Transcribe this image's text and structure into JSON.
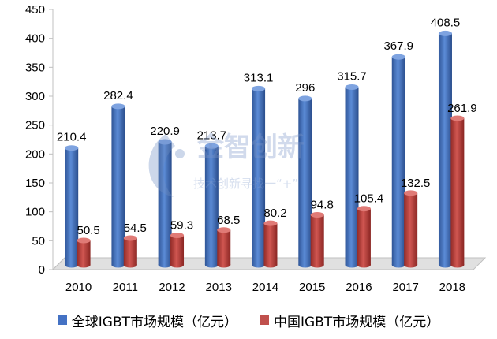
{
  "chart_data": {
    "type": "bar",
    "categories": [
      "2010",
      "2011",
      "2012",
      "2013",
      "2014",
      "2015",
      "2016",
      "2017",
      "2018"
    ],
    "series": [
      {
        "name": "全球IGBT市场规模（亿元）",
        "values": [
          210.4,
          282.4,
          220.9,
          213.7,
          313.1,
          296,
          315.7,
          367.9,
          408.5
        ],
        "labels": [
          "210.4",
          "282.4",
          "220.9",
          "213.7",
          "313.1",
          "296",
          "315.7",
          "367.9",
          "408.5"
        ],
        "color": "#4472C4"
      },
      {
        "name": "中国IGBT市场规模（亿元）",
        "values": [
          50.5,
          54.5,
          59.3,
          68.5,
          80.2,
          94.8,
          105.4,
          132.5,
          261.9
        ],
        "labels": [
          "50.5",
          "54.5",
          "59.3",
          "68.5",
          "80.2",
          "94.8",
          "105.4",
          "132.5",
          "261.9"
        ],
        "color": "#C0504D"
      }
    ],
    "yticks": [
      "0",
      "50",
      "100",
      "150",
      "200",
      "250",
      "300",
      "350",
      "400",
      "450"
    ],
    "ylim": [
      0,
      450
    ],
    "style": "3d-cylinder",
    "grid": false,
    "legend_position": "bottom"
  },
  "watermark": {
    "text_main": "金智创新",
    "text_sub": "技术创新寻找一“+”"
  }
}
